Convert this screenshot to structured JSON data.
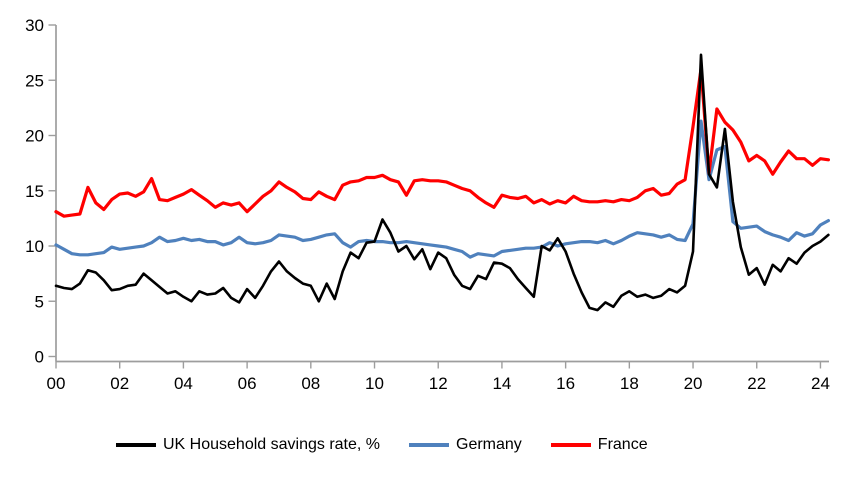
{
  "chart_data": {
    "type": "line",
    "title": "",
    "xlabel": "",
    "ylabel": "",
    "x_unit": "quarterly",
    "x_start_year": 2000,
    "x_tick_labels": [
      "00",
      "02",
      "04",
      "06",
      "08",
      "10",
      "12",
      "14",
      "16",
      "18",
      "20",
      "22",
      "24"
    ],
    "y_ticks": [
      0,
      5,
      10,
      15,
      20,
      25,
      30
    ],
    "ylim": [
      0,
      30
    ],
    "grid": false,
    "legend_position": "bottom",
    "axis_color": "#9d9d9d",
    "series": [
      {
        "name": "UK Household savings rate, %",
        "color": "#000000",
        "values": [
          6.4,
          6.2,
          6.1,
          6.6,
          7.8,
          7.6,
          6.9,
          6.0,
          6.1,
          6.4,
          6.5,
          7.5,
          6.9,
          6.3,
          5.7,
          5.9,
          5.4,
          5.0,
          5.9,
          5.6,
          5.7,
          6.2,
          5.3,
          4.9,
          6.1,
          5.3,
          6.4,
          7.7,
          8.6,
          7.7,
          7.1,
          6.6,
          6.4,
          5.0,
          6.6,
          5.2,
          7.7,
          9.4,
          8.9,
          10.3,
          10.4,
          12.4,
          11.2,
          9.5,
          10.0,
          8.8,
          9.7,
          7.9,
          9.4,
          8.9,
          7.4,
          6.4,
          6.1,
          7.3,
          7.0,
          8.5,
          8.4,
          8.0,
          7.0,
          6.2,
          5.4,
          10.0,
          9.6,
          10.7,
          9.5,
          7.5,
          5.8,
          4.4,
          4.2,
          4.9,
          4.5,
          5.5,
          5.9,
          5.4,
          5.6,
          5.3,
          5.5,
          6.1,
          5.8,
          6.4,
          9.5,
          27.3,
          16.5,
          15.3,
          20.6,
          14.0,
          9.9,
          7.4,
          8.0,
          6.5,
          8.3,
          7.7,
          8.9,
          8.4,
          9.4,
          10.0,
          10.4,
          11.0
        ]
      },
      {
        "name": "Germany",
        "color": "#4F81BD",
        "values": [
          10.1,
          9.7,
          9.3,
          9.2,
          9.2,
          9.3,
          9.4,
          9.9,
          9.7,
          9.8,
          9.9,
          10.0,
          10.3,
          10.8,
          10.4,
          10.5,
          10.7,
          10.5,
          10.6,
          10.4,
          10.4,
          10.1,
          10.3,
          10.8,
          10.3,
          10.2,
          10.3,
          10.5,
          11.0,
          10.9,
          10.8,
          10.5,
          10.6,
          10.8,
          11.0,
          11.1,
          10.3,
          9.9,
          10.4,
          10.5,
          10.4,
          10.4,
          10.3,
          10.3,
          10.4,
          10.3,
          10.2,
          10.1,
          10.0,
          9.9,
          9.7,
          9.5,
          9.0,
          9.3,
          9.2,
          9.1,
          9.5,
          9.6,
          9.7,
          9.8,
          9.8,
          9.9,
          10.3,
          10.0,
          10.2,
          10.3,
          10.4,
          10.4,
          10.3,
          10.5,
          10.2,
          10.5,
          10.9,
          11.2,
          11.1,
          11.0,
          10.8,
          11.0,
          10.6,
          10.5,
          12.0,
          21.3,
          16.0,
          18.7,
          19.0,
          12.2,
          11.6,
          11.7,
          11.8,
          11.3,
          11.0,
          10.8,
          10.5,
          11.2,
          10.9,
          11.1,
          11.9,
          12.3
        ]
      },
      {
        "name": "France",
        "color": "#FF0000",
        "values": [
          13.1,
          12.7,
          12.8,
          12.9,
          15.3,
          13.9,
          13.3,
          14.2,
          14.7,
          14.8,
          14.5,
          14.9,
          16.1,
          14.2,
          14.1,
          14.4,
          14.7,
          15.1,
          14.6,
          14.1,
          13.5,
          13.9,
          13.7,
          13.9,
          13.1,
          13.8,
          14.5,
          15.0,
          15.8,
          15.3,
          14.9,
          14.3,
          14.2,
          14.9,
          14.5,
          14.2,
          15.5,
          15.8,
          15.9,
          16.2,
          16.2,
          16.4,
          16.0,
          15.8,
          14.6,
          15.9,
          16.0,
          15.9,
          15.9,
          15.8,
          15.5,
          15.2,
          15.0,
          14.4,
          13.9,
          13.5,
          14.6,
          14.4,
          14.3,
          14.5,
          13.9,
          14.2,
          13.8,
          14.1,
          13.9,
          14.5,
          14.1,
          14.0,
          14.0,
          14.1,
          14.0,
          14.2,
          14.1,
          14.4,
          15.0,
          15.2,
          14.6,
          14.75,
          15.6,
          16.0,
          20.8,
          26.0,
          16.6,
          22.4,
          21.2,
          20.5,
          19.4,
          17.7,
          18.2,
          17.7,
          16.5,
          17.6,
          18.6,
          17.9,
          17.9,
          17.3,
          17.9,
          17.8
        ]
      }
    ]
  }
}
